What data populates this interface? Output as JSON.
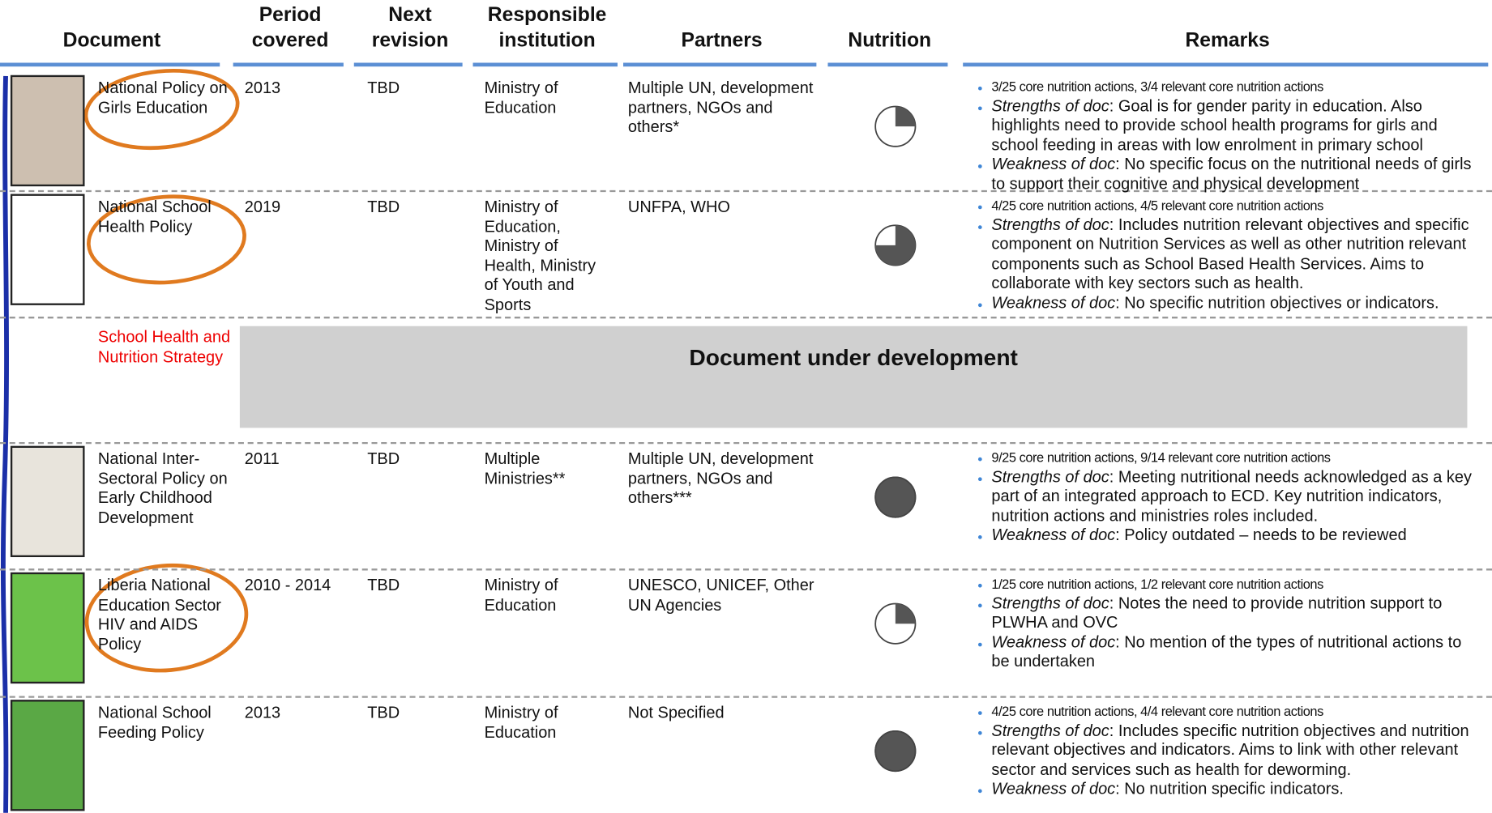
{
  "table": {
    "headers": [
      "Document",
      "Period covered",
      "Next revision",
      "Responsible institution",
      "Partners",
      "Nutrition",
      "Remarks"
    ],
    "rows": [
      {
        "document": "National Policy on Girls Education",
        "period": "2013",
        "revision": "TBD",
        "institution": "Ministry of Education",
        "partners": "Multiple UN, development partners, NGOs and others*",
        "nutrition": 0.25,
        "remarks": {
          "actions": "3/25 core nutrition actions, 3/4 relevant core nutrition actions",
          "strengths_label": "Strengths of doc",
          "strengths": ": Goal is for gender parity in education. Also highlights need to provide school health programs for girls and school feeding in areas with low enrolment in primary school",
          "weakness_label": "Weakness of doc",
          "weakness": ": No specific focus on the nutritional needs of girls to support their cognitive and physical development"
        }
      },
      {
        "document": "National School Health Policy",
        "period": "2019",
        "revision": "TBD",
        "institution": "Ministry of Education, Ministry of Health, Ministry of Youth and Sports",
        "partners": "UNFPA, WHO",
        "nutrition": 0.75,
        "remarks": {
          "actions": "4/25 core nutrition actions, 4/5 relevant core nutrition actions",
          "strengths_label": "Strengths of doc",
          "strengths": ": Includes nutrition relevant objectives and specific component on Nutrition Services as well as other nutrition relevant components such as School Based Health Services. Aims to collaborate with key sectors such as health.",
          "weakness_label": "Weakness of doc",
          "weakness": ": No specific nutrition objectives or indicators."
        }
      },
      {
        "document": "School Health and Nutrition Strategy",
        "status": "Document under development"
      },
      {
        "document": "National Inter-Sectoral Policy on Early Childhood Development",
        "period": "2011",
        "revision": "TBD",
        "institution": "Multiple Ministries**",
        "partners": "Multiple UN, development partners, NGOs and others***",
        "nutrition": 1,
        "remarks": {
          "actions": "9/25 core nutrition actions, 9/14 relevant core nutrition actions",
          "strengths_label": "Strengths of doc",
          "strengths": ": Meeting nutritional needs acknowledged as a key part of an integrated approach to ECD. Key nutrition indicators, nutrition actions and ministries roles included.",
          "weakness_label": "Weakness of doc",
          "weakness": ": Policy outdated – needs to be reviewed"
        }
      },
      {
        "document": "Liberia National Education Sector HIV and AIDS Policy",
        "period": "2010 - 2014",
        "revision": "TBD",
        "institution": "Ministry of Education",
        "partners": "UNESCO, UNICEF, Other UN Agencies",
        "nutrition": 0.25,
        "remarks": {
          "actions": "1/25 core nutrition actions, 1/2 relevant core nutrition actions",
          "strengths_label": "Strengths of doc",
          "strengths": ": Notes the need to provide nutrition support to PLWHA and OVC",
          "weakness_label": "Weakness of doc",
          "weakness": ": No mention of the types of nutritional actions to be undertaken"
        }
      },
      {
        "document": "National School Feeding Policy",
        "period": "2013",
        "revision": "TBD",
        "institution": "Ministry of Education",
        "partners": "Not Specified",
        "nutrition": 1,
        "remarks": {
          "actions": "4/25 core nutrition actions, 4/4 relevant core nutrition actions",
          "strengths_label": "Strengths of doc",
          "strengths": ": Includes specific nutrition objectives and nutrition relevant objectives and indicators. Aims to link with other relevant sector and services such as health for deworming.",
          "weakness_label": "Weakness of doc",
          "weakness": ": No nutrition specific indicators."
        }
      }
    ]
  }
}
